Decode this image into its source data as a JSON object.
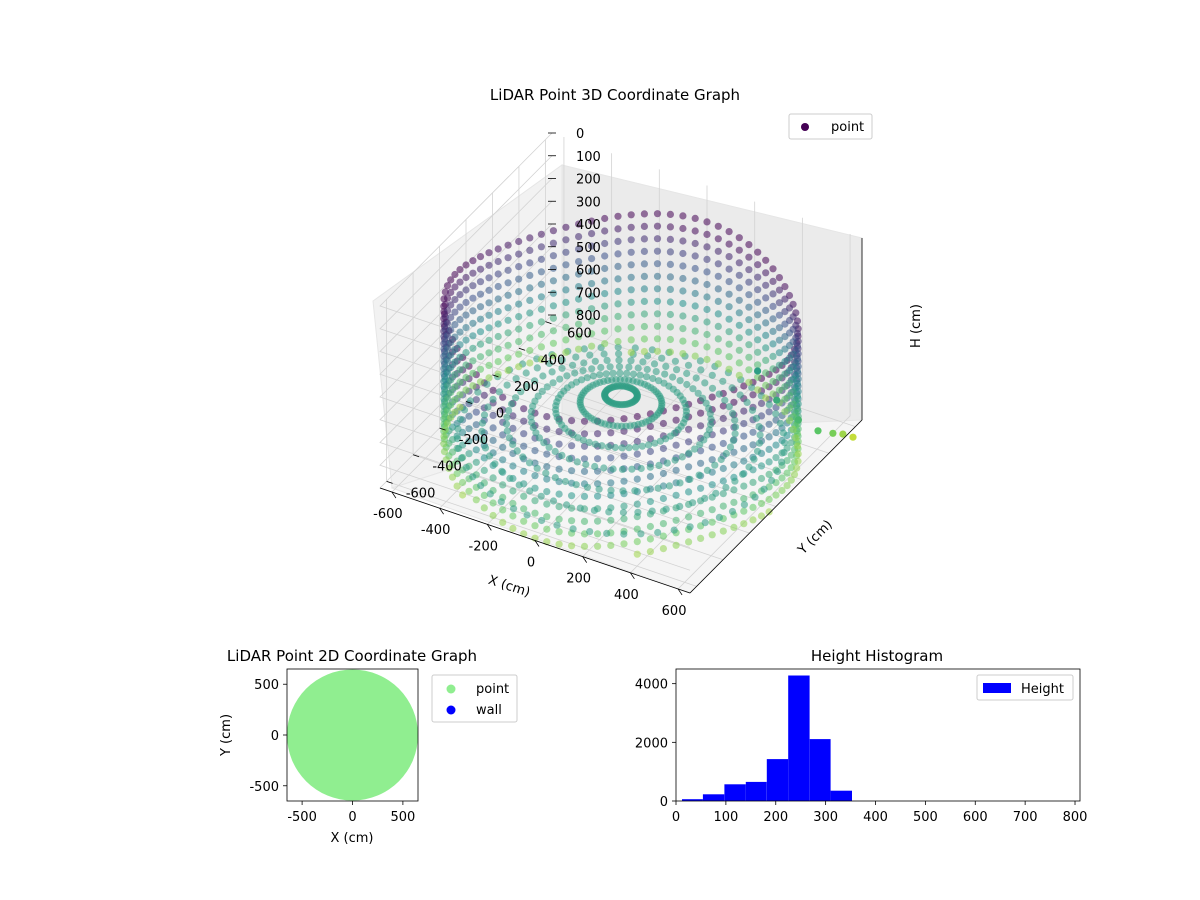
{
  "chart_data": [
    {
      "type": "scatter3d",
      "title": "LiDAR Point 3D Coordinate Graph",
      "xlabel": "X (cm)",
      "ylabel": "Y (cm)",
      "zlabel": "H (cm)",
      "xlim": [
        -650,
        650
      ],
      "ylim": [
        -650,
        650
      ],
      "zlim": [
        800,
        0
      ],
      "xticks": [
        -600,
        -400,
        -200,
        0,
        200,
        400,
        600
      ],
      "yticks": [
        -600,
        -400,
        -200,
        0,
        200,
        400,
        600
      ],
      "zticks": [
        0,
        100,
        200,
        300,
        400,
        500,
        600,
        700,
        800
      ],
      "colormap": "viridis",
      "legend": {
        "entries": [
          "point"
        ],
        "position": "upper right"
      },
      "series": [
        {
          "name": "point",
          "shape": "ring of vertical scan lines",
          "radius_cm": 650,
          "height_range_cm": [
            200,
            800
          ],
          "stray_points": [
            {
              "x": 340,
              "y": 420,
              "h": 560
            },
            {
              "x": 420,
              "y": 420,
              "h": 660
            },
            {
              "x": 500,
              "y": 440,
              "h": 730
            },
            {
              "x": 560,
              "y": 480,
              "h": 780
            },
            {
              "x": 600,
              "y": 520,
              "h": 800
            },
            {
              "x": 620,
              "y": 560,
              "h": 820
            },
            {
              "x": 640,
              "y": 600,
              "h": 850
            }
          ]
        }
      ]
    },
    {
      "type": "scatter",
      "title": "LiDAR Point 2D Coordinate Graph",
      "xlabel": "X (cm)",
      "ylabel": "Y (cm)",
      "xlim": [
        -650,
        650
      ],
      "ylim": [
        -650,
        650
      ],
      "xticks": [
        -500,
        0,
        500
      ],
      "yticks": [
        -500,
        0,
        500
      ],
      "legend": {
        "position": "outside upper right"
      },
      "series": [
        {
          "name": "point",
          "color": "#90ee90",
          "shape": "filled disc",
          "center": [
            0,
            0
          ],
          "radius": 650
        },
        {
          "name": "wall",
          "color": "#0000ff",
          "points": []
        }
      ]
    },
    {
      "type": "bar",
      "title": "Height Histogram",
      "xlabel": "",
      "ylabel": "",
      "xlim": [
        0,
        810
      ],
      "ylim": [
        0,
        4500
      ],
      "xticks": [
        0,
        100,
        200,
        300,
        400,
        500,
        600,
        700,
        800
      ],
      "yticks": [
        0,
        2000,
        4000
      ],
      "bin_edges": [
        12,
        54,
        97,
        140,
        182,
        225,
        268,
        310,
        353,
        396,
        438,
        481,
        524,
        566,
        609,
        652,
        694,
        737,
        780
      ],
      "values": [
        60,
        230,
        570,
        650,
        1430,
        4280,
        2110,
        350,
        0,
        0,
        0,
        0,
        0,
        0,
        0,
        0,
        0,
        0
      ],
      "legend": {
        "entries": [
          "Height"
        ],
        "position": "upper right"
      },
      "series": [
        {
          "name": "Height",
          "color": "#0000ff"
        }
      ]
    }
  ]
}
